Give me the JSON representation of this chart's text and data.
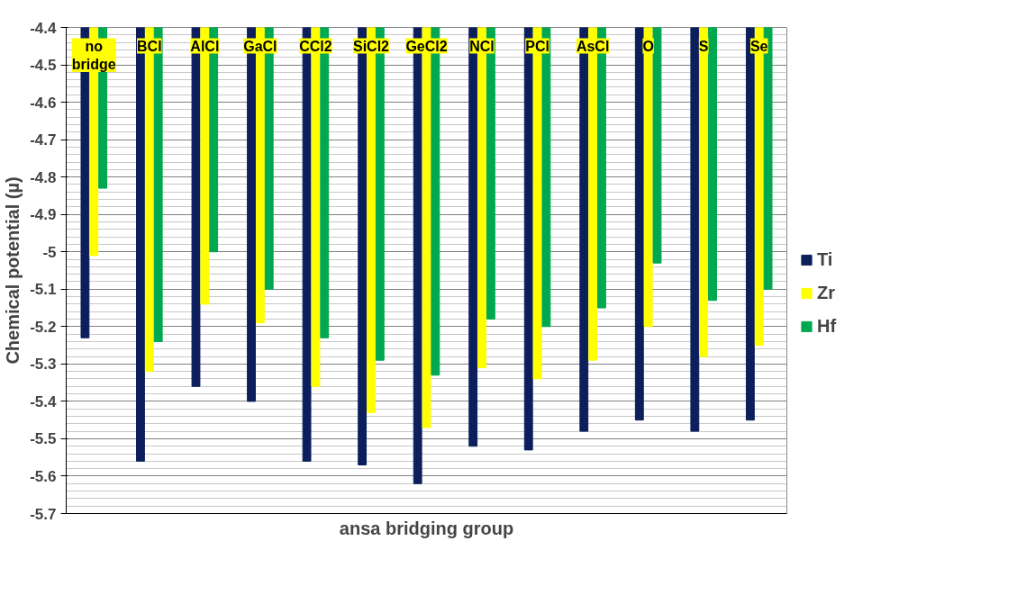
{
  "chart_data": {
    "type": "bar",
    "xlabel": "ansa bridging group",
    "ylabel": "Chemical potential (µ)",
    "categories": [
      "no\nbridge",
      "BCl",
      "AlCl",
      "GaCl",
      "CCl2",
      "SiCl2",
      "GeCl2",
      "NCl",
      "PCl",
      "AsCl",
      "O",
      "S",
      "Se"
    ],
    "series": [
      {
        "name": "Ti",
        "color": "#0c1f5c",
        "values": [
          -5.23,
          -5.56,
          -5.36,
          -5.4,
          -5.56,
          -5.57,
          -5.62,
          -5.52,
          -5.53,
          -5.48,
          -5.45,
          -5.48,
          -5.45
        ]
      },
      {
        "name": "Zr",
        "color": "#ffff00",
        "values": [
          -5.01,
          -5.32,
          -5.14,
          -5.19,
          -5.36,
          -5.43,
          -5.47,
          -5.31,
          -5.34,
          -5.29,
          -5.2,
          -5.28,
          -5.25
        ]
      },
      {
        "name": "Hf",
        "color": "#00a84f",
        "values": [
          -4.83,
          -5.24,
          -5.0,
          -5.1,
          -5.23,
          -5.29,
          -5.33,
          -5.18,
          -5.2,
          -5.15,
          -5.03,
          -5.13,
          -5.1
        ]
      }
    ],
    "ylim": [
      -5.7,
      -4.4
    ],
    "yticks": [
      -5.7,
      -5.6,
      -5.5,
      -5.4,
      -5.3,
      -5.2,
      -5.1,
      {
        "value": -5.0,
        "label": "-5"
      },
      -4.9,
      -4.8,
      -4.7,
      -4.6,
      -4.5,
      -4.4
    ],
    "grid": "y",
    "legend": "right",
    "tick_labels": "y"
  }
}
